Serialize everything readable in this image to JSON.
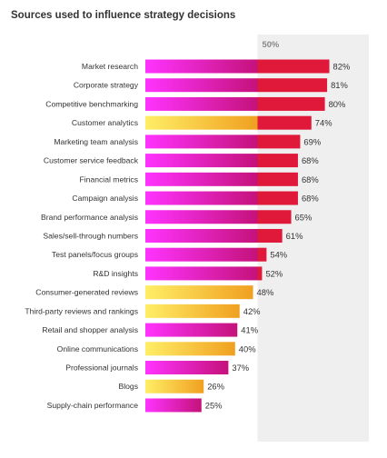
{
  "chart_data": {
    "type": "bar",
    "orientation": "horizontal",
    "title": "Sources used to influence strategy decisions",
    "reference_line": {
      "value": 50,
      "label": "50%"
    },
    "value_suffix": "%",
    "categories": [
      "Market research",
      "Corporate strategy",
      "Competitive benchmarking",
      "Customer analytics",
      "Marketing team analysis",
      "Customer service feedback",
      "Financial metrics",
      "Campaign analysis",
      "Brand performance analysis",
      "Sales/sell-through numbers",
      "Test panels/focus groups",
      "R&D insights",
      "Consumer-generated reviews",
      "Third-party reviews and rankings",
      "Retail and shopper analysis",
      "Online communications",
      "Professional journals",
      "Blogs",
      "Supply-chain performance"
    ],
    "values": [
      82,
      81,
      80,
      74,
      69,
      68,
      68,
      68,
      65,
      61,
      54,
      52,
      48,
      42,
      41,
      40,
      37,
      26,
      25
    ],
    "color_groups": [
      "magenta",
      "magenta",
      "magenta",
      "orange",
      "magenta",
      "magenta",
      "magenta",
      "magenta",
      "magenta",
      "magenta",
      "magenta",
      "magenta",
      "orange",
      "orange",
      "magenta",
      "orange",
      "magenta",
      "orange",
      "magenta"
    ],
    "colors": {
      "magenta_start": "#ff33ff",
      "magenta_end": "#c4127a",
      "orange_start": "#ffee66",
      "orange_end": "#f0a020",
      "above_reference": "#e0193a",
      "reference_band": "#efefef"
    },
    "xlim": [
      0,
      100
    ],
    "grid": false,
    "legend": "none"
  }
}
